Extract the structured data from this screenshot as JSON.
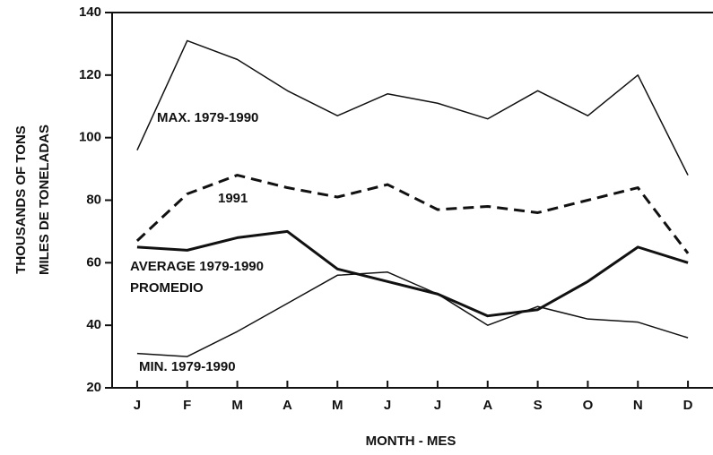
{
  "chart_data": {
    "type": "line",
    "ylabel": [
      "THOUSANDS OF TONS",
      "MILES DE TONELADAS"
    ],
    "xlabel": "MONTH - MES",
    "categories": [
      "J",
      "F",
      "M",
      "A",
      "M",
      "J",
      "J",
      "A",
      "S",
      "O",
      "N",
      "D"
    ],
    "ylim": [
      20,
      140
    ],
    "yticks": [
      20,
      40,
      60,
      80,
      100,
      120,
      140
    ],
    "series": [
      {
        "name": "MAX. 1979-1990",
        "color": "#111111",
        "line_width": 1.5,
        "dashed": false,
        "values": [
          96,
          131,
          125,
          115,
          107,
          114,
          111,
          106,
          115,
          107,
          120,
          88
        ]
      },
      {
        "name": "1991",
        "color": "#111111",
        "line_width": 3,
        "dashed": true,
        "values": [
          67,
          82,
          88,
          84,
          81,
          85,
          77,
          78,
          76,
          80,
          84,
          63
        ]
      },
      {
        "name": "AVERAGE 1979-1990",
        "color": "#111111",
        "line_width": 3,
        "dashed": false,
        "values": [
          65,
          64,
          68,
          70,
          58,
          54,
          50,
          43,
          45,
          54,
          65,
          60
        ]
      },
      {
        "name": "MIN. 1979-1990",
        "color": "#111111",
        "line_width": 1.5,
        "dashed": false,
        "values": [
          31,
          30,
          38,
          47,
          56,
          57,
          50,
          40,
          46,
          42,
          41,
          36
        ]
      }
    ],
    "annotations": [
      "PROMEDIO"
    ]
  }
}
